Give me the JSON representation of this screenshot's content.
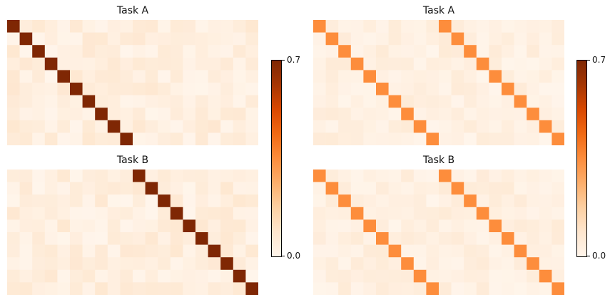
{
  "chart_data": [
    {
      "type": "heatmap",
      "title": "Task A",
      "rows": 10,
      "cols": 20,
      "diagonal_value": 0.7,
      "diagonal_cols": [
        0,
        1,
        2,
        3,
        4,
        5,
        6,
        7,
        8,
        9
      ],
      "background_range": [
        0.0,
        0.08
      ],
      "color_scale": "Oranges",
      "clim": [
        0.0,
        0.7
      ]
    },
    {
      "type": "heatmap",
      "title": "Task B",
      "rows": 10,
      "cols": 20,
      "diagonal_value": 0.7,
      "diagonal_cols": [
        10,
        11,
        12,
        13,
        14,
        15,
        16,
        17,
        18,
        19
      ],
      "background_range": [
        0.0,
        0.08
      ],
      "color_scale": "Oranges",
      "clim": [
        0.0,
        0.7
      ]
    },
    {
      "type": "heatmap",
      "title": "Task A",
      "rows": 10,
      "cols": 20,
      "diagonal_value": 0.35,
      "diagonal_cols_a": [
        0,
        1,
        2,
        3,
        4,
        5,
        6,
        7,
        8,
        9
      ],
      "diagonal_cols_b": [
        10,
        11,
        12,
        13,
        14,
        15,
        16,
        17,
        18,
        19
      ],
      "background_range": [
        0.0,
        0.06
      ],
      "color_scale": "Oranges",
      "clim": [
        0.0,
        0.7
      ]
    },
    {
      "type": "heatmap",
      "title": "Task B",
      "rows": 10,
      "cols": 20,
      "diagonal_value": 0.35,
      "diagonal_cols_a": [
        0,
        1,
        2,
        3,
        4,
        5,
        6,
        7,
        8,
        9
      ],
      "diagonal_cols_b": [
        10,
        11,
        12,
        13,
        14,
        15,
        16,
        17,
        18,
        19
      ],
      "background_range": [
        0.0,
        0.06
      ],
      "color_scale": "Oranges",
      "clim": [
        0.0,
        0.7
      ]
    }
  ],
  "colorbars": [
    {
      "min_label": "0.0",
      "max_label": "0.7"
    },
    {
      "min_label": "0.0",
      "max_label": "0.7"
    }
  ]
}
